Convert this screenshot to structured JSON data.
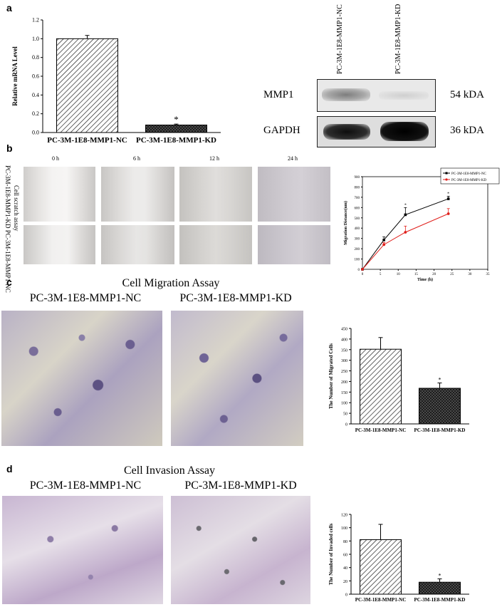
{
  "panels": {
    "a": "a",
    "b": "b",
    "c": "c",
    "d": "d"
  },
  "western_blot": {
    "lane_labels": [
      "PC-3M-1E8-MMP1-NC",
      "PC-3M-1E8-MMP1-KD"
    ],
    "rows": [
      {
        "protein": "MMP1",
        "size": "54 kDA"
      },
      {
        "protein": "GAPDH",
        "size": "36 kDA"
      }
    ]
  },
  "scratch": {
    "time_labels": [
      "0 h",
      "6 h",
      "12 h",
      "24 h"
    ],
    "side_label": "PC-3M-1E8-MMP1-KD  PC-3M-1E8-MMP1-NC",
    "assay_label": "Cell scratch assay"
  },
  "migration": {
    "title": "Cell Migration Assay",
    "conditions": [
      "PC-3M-1E8-MMP1-NC",
      "PC-3M-1E8-MMP1-KD"
    ]
  },
  "invasion": {
    "title": "Cell Invasion Assay",
    "conditions": [
      "PC-3M-1E8-MMP1-NC",
      "PC-3M-1E8-MMP1-KD"
    ]
  },
  "chart_data": [
    {
      "id": "mrna",
      "type": "bar",
      "title": "",
      "xlabel": "",
      "ylabel": "Relative mRNA Level",
      "categories": [
        "PC-3M-1E8-MMP1-NC",
        "PC-3M-1E8-MMP1-KD"
      ],
      "values": [
        1.0,
        0.08
      ],
      "errors": [
        0.035,
        0.01
      ],
      "ylim": [
        0,
        1.2
      ],
      "yticks": [
        "0.0",
        "0.2",
        "0.4",
        "0.6",
        "0.8",
        "1.0",
        "1.2"
      ],
      "annotations": [
        "",
        "*"
      ]
    },
    {
      "id": "distance",
      "type": "line",
      "title": "",
      "xlabel": "Time (h)",
      "ylabel": "Migration Distance(um)",
      "x": [
        0,
        6,
        12,
        24
      ],
      "series": [
        {
          "name": "PC-3M-1E8-MMP1-NC",
          "values": [
            0,
            285,
            530,
            685
          ],
          "errors": [
            0,
            30,
            70,
            25
          ],
          "color": "#000000"
        },
        {
          "name": "PC-3M-1E8-MMP1-KD",
          "values": [
            0,
            240,
            360,
            540
          ],
          "errors": [
            0,
            20,
            60,
            50
          ],
          "color": "#e0201c"
        }
      ],
      "xlim": [
        0,
        35
      ],
      "ylim": [
        0,
        900
      ],
      "xticks": [
        "0",
        "5",
        "10",
        "15",
        "20",
        "25",
        "30",
        "35"
      ],
      "yticks": [
        "0",
        "100",
        "200",
        "300",
        "400",
        "500",
        "600",
        "700",
        "800",
        "900"
      ],
      "annotations": [
        "*",
        "*"
      ],
      "legend": "top-right"
    },
    {
      "id": "migrated",
      "type": "bar",
      "title": "",
      "xlabel": "",
      "ylabel": "The Number of Migrated Cells",
      "categories": [
        "PC-3M-1E8-MMP1-NC",
        "PC-3M-1E8-MMP1-KD"
      ],
      "values": [
        352,
        168
      ],
      "errors": [
        55,
        25
      ],
      "ylim": [
        0,
        450
      ],
      "yticks": [
        "0",
        "50",
        "100",
        "150",
        "200",
        "250",
        "300",
        "350",
        "400",
        "450"
      ],
      "annotations": [
        "",
        "*"
      ]
    },
    {
      "id": "invaded",
      "type": "bar",
      "title": "",
      "xlabel": "",
      "ylabel": "The Number of Invaded cells",
      "categories": [
        "PC-3M-1E8-MMP1-NC",
        "PC-3M-1E8-MMP1-KD"
      ],
      "values": [
        82,
        18
      ],
      "errors": [
        23,
        5
      ],
      "ylim": [
        0,
        120
      ],
      "yticks": [
        "0",
        "20",
        "40",
        "60",
        "80",
        "100",
        "120"
      ],
      "annotations": [
        "",
        "*"
      ]
    }
  ]
}
